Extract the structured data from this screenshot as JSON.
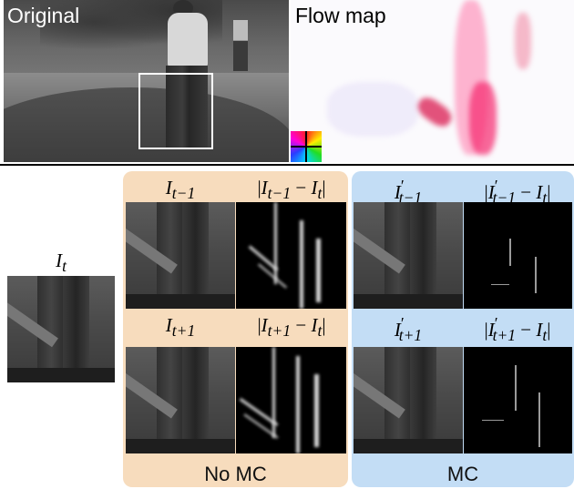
{
  "top": {
    "original_label": "Original",
    "flow_label": "Flow map"
  },
  "it_label": {
    "base": "I",
    "sub": "t"
  },
  "no_mc": {
    "caption": "No MC",
    "row1": {
      "frame": {
        "base": "I",
        "sub": "t−1"
      },
      "diff": {
        "text_a": "|",
        "base_a": "I",
        "sub_a": "t−1",
        "op": " − ",
        "base_b": "I",
        "sub_b": "t",
        "text_b": "|"
      }
    },
    "row2": {
      "frame": {
        "base": "I",
        "sub": "t+1"
      },
      "diff": {
        "text_a": "|",
        "base_a": "I",
        "sub_a": "t+1",
        "op": " − ",
        "base_b": "I",
        "sub_b": "t",
        "text_b": "|"
      }
    }
  },
  "mc": {
    "caption": "MC",
    "row1": {
      "frame": {
        "base": "I",
        "sup": "′",
        "sub": "t−1"
      },
      "diff": {
        "text_a": "|",
        "base_a": "I",
        "sup_a": "′",
        "sub_a": "t−1",
        "op": " − ",
        "base_b": "I",
        "sub_b": "t",
        "text_b": "|"
      }
    },
    "row2": {
      "frame": {
        "base": "I",
        "sup": "′",
        "sub": "t+1"
      },
      "diff": {
        "text_a": "|",
        "base_a": "I",
        "sup_a": "′",
        "sub_a": "t+1",
        "op": " − ",
        "base_b": "I",
        "sub_b": "t",
        "text_b": "|"
      }
    }
  },
  "colors": {
    "no_mc_panel": "#f7dcbd",
    "mc_panel": "#c3ddf5",
    "crop_box": "#ffffff",
    "separator": "#000000"
  }
}
